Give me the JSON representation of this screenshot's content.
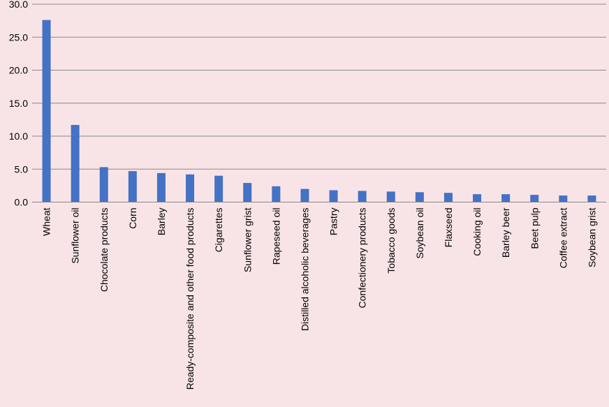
{
  "chart_data": {
    "type": "bar",
    "title": "",
    "xlabel": "",
    "ylabel": "",
    "ylim": [
      0,
      30
    ],
    "y_ticks": [
      "0.0",
      "5.0",
      "10.0",
      "15.0",
      "20.0",
      "25.0",
      "30.0"
    ],
    "grid": true,
    "legend": "none",
    "categories": [
      "Wheat",
      "Sunflower oil",
      "Chocolate products",
      "Corn",
      "Barley",
      "Ready-composite and other food products",
      "Cigarettes",
      "Sunflower grist",
      "Rapeseed oil",
      "Distilled alcoholic beverages",
      "Pastry",
      "Confectionery products",
      "Tobacco goods",
      "Soybean oil",
      "Flaxseed",
      "Cooking oil",
      "Barley beer",
      "Beet pulp",
      "Coffee extract",
      "Soybean grist"
    ],
    "values": [
      27.6,
      11.7,
      5.3,
      4.7,
      4.4,
      4.2,
      4.0,
      2.9,
      2.4,
      2.0,
      1.8,
      1.7,
      1.6,
      1.5,
      1.4,
      1.2,
      1.2,
      1.1,
      1.0,
      1.0
    ],
    "colors": {
      "bar": "#4472c4",
      "grid": "#888888",
      "axis": "#888888",
      "background": "#f8e4e7"
    }
  }
}
